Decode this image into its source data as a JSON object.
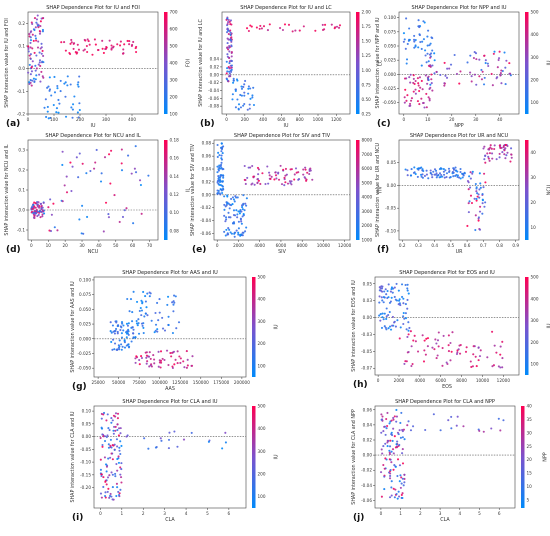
{
  "chart_data": [
    {
      "type": "scatter",
      "panel": "(a)",
      "title": "SHAP Dependence Plot for IU and FOI",
      "xlabel": "IU",
      "ylabel": "SHAP interaction value for IU and FOI",
      "colorbar_label": "FOI",
      "xlim": [
        0,
        500
      ],
      "ylim": [
        -0.2,
        0.25
      ],
      "xticks": [
        0,
        100,
        200,
        300,
        400
      ],
      "yticks": [
        -0.2,
        -0.1,
        0.0,
        0.1,
        0.2
      ],
      "cbar_range": [
        100,
        700
      ],
      "cbar_ticks": [
        100,
        200,
        300,
        400,
        500,
        600,
        700
      ],
      "clusters": [
        {
          "x": [
            0,
            60
          ],
          "y": [
            -0.08,
            0.24
          ],
          "c": [
            100,
            700
          ],
          "n": 90
        },
        {
          "x": [
            60,
            200
          ],
          "y": [
            -0.22,
            -0.02
          ],
          "c": [
            100,
            250
          ],
          "n": 45
        },
        {
          "x": [
            120,
            420
          ],
          "y": [
            0.06,
            0.13
          ],
          "c": [
            550,
            700
          ],
          "n": 60
        }
      ]
    },
    {
      "type": "scatter",
      "panel": "(b)",
      "title": "SHAP Dependence Plot for IU and LC",
      "xlabel": "IU",
      "ylabel": "SHAP interaction value for IU and LC",
      "colorbar_label": "LC",
      "xlim": [
        -50,
        1350
      ],
      "ylim": [
        -0.1,
        0.16
      ],
      "xticks": [
        0,
        200,
        400,
        600,
        800,
        1000,
        1200
      ],
      "yticks": [
        -0.08,
        -0.06,
        -0.04,
        -0.02,
        0.0,
        0.02,
        0.04
      ],
      "cbar_range": [
        0.25,
        2.0
      ],
      "cbar_ticks": [
        0.25,
        0.5,
        0.75,
        1.0,
        1.25,
        1.5,
        1.75,
        2.0
      ],
      "clusters": [
        {
          "x": [
            0,
            60
          ],
          "y": [
            -0.02,
            0.15
          ],
          "c": [
            0.25,
            2.0
          ],
          "n": 80
        },
        {
          "x": [
            60,
            300
          ],
          "y": [
            -0.09,
            -0.01
          ],
          "c": [
            0.25,
            0.8
          ],
          "n": 40
        },
        {
          "x": [
            200,
            1250
          ],
          "y": [
            0.11,
            0.13
          ],
          "c": [
            1.5,
            2.0
          ],
          "n": 30
        }
      ]
    },
    {
      "type": "scatter",
      "panel": "(c)",
      "title": "SHAP Dependence Plot for NPP and IU",
      "xlabel": "NPP",
      "ylabel": "SHAP interaction value for NPP and IU",
      "colorbar_label": "IU",
      "xlim": [
        -2,
        48
      ],
      "ylim": [
        -0.07,
        0.11
      ],
      "xticks": [
        0,
        10,
        20,
        30,
        40
      ],
      "yticks": [
        -0.05,
        -0.025,
        0.0,
        0.025,
        0.05,
        0.075,
        0.1
      ],
      "cbar_range": [
        50,
        500
      ],
      "cbar_ticks": [
        100,
        200,
        300,
        400,
        500
      ],
      "clusters": [
        {
          "x": [
            0,
            12
          ],
          "y": [
            0.01,
            0.1
          ],
          "c": [
            50,
            200
          ],
          "n": 50
        },
        {
          "x": [
            0,
            12
          ],
          "y": [
            -0.06,
            0.0
          ],
          "c": [
            300,
            500
          ],
          "n": 50
        },
        {
          "x": [
            10,
            45
          ],
          "y": [
            -0.02,
            0.04
          ],
          "c": [
            50,
            500
          ],
          "n": 80
        }
      ]
    },
    {
      "type": "scatter",
      "panel": "(d)",
      "title": "SHAP Dependence Plot for NCU and IL",
      "xlabel": "NCU",
      "ylabel": "SHAP interaction value for NCU and IL",
      "colorbar_label": "IL",
      "xlim": [
        -2,
        75
      ],
      "ylim": [
        -0.15,
        0.35
      ],
      "xticks": [
        0,
        10,
        20,
        30,
        40,
        50,
        60,
        70
      ],
      "yticks": [
        -0.1,
        0.0,
        0.1,
        0.2,
        0.3
      ],
      "cbar_range": [
        0.07,
        0.18
      ],
      "cbar_ticks": [
        0.08,
        0.1,
        0.12,
        0.14,
        0.16,
        0.18
      ],
      "clusters": [
        {
          "x": [
            0,
            8
          ],
          "y": [
            -0.04,
            0.04
          ],
          "c": [
            0.07,
            0.18
          ],
          "n": 70
        },
        {
          "x": [
            8,
            70
          ],
          "y": [
            -0.12,
            0.32
          ],
          "c": [
            0.07,
            0.18
          ],
          "n": 60
        }
      ]
    },
    {
      "type": "scatter",
      "panel": "(e)",
      "title": "SHAP Dependence Plot for SIV and TIV",
      "xlabel": "SIV",
      "ylabel": "SHAP interaction value for SIV and TIV",
      "colorbar_label": "TIV",
      "xlim": [
        -300,
        12500
      ],
      "ylim": [
        -0.07,
        0.085
      ],
      "xticks": [
        0,
        2000,
        4000,
        6000,
        8000,
        10000,
        12000
      ],
      "yticks": [
        -0.06,
        -0.04,
        -0.02,
        0.0,
        0.02,
        0.04,
        0.06,
        0.08
      ],
      "cbar_range": [
        1000,
        8000
      ],
      "cbar_ticks": [
        1000,
        2000,
        3000,
        4000,
        5000,
        6000,
        7000,
        8000
      ],
      "clusters": [
        {
          "x": [
            0,
            600
          ],
          "y": [
            0.0,
            0.08
          ],
          "c": [
            1000,
            3000
          ],
          "n": 70
        },
        {
          "x": [
            600,
            2800
          ],
          "y": [
            -0.065,
            0.0
          ],
          "c": [
            1000,
            3500
          ],
          "n": 90
        },
        {
          "x": [
            2500,
            9000
          ],
          "y": [
            0.015,
            0.045
          ],
          "c": [
            4000,
            8000
          ],
          "n": 80
        }
      ]
    },
    {
      "type": "scatter",
      "panel": "(f)",
      "title": "SHAP Dependence Plot for UR and NCU",
      "xlabel": "UR",
      "ylabel": "SHAP interaction value for UR and NCU",
      "colorbar_label": "NCU",
      "xlim": [
        0.18,
        0.92
      ],
      "ylim": [
        -0.12,
        0.1
      ],
      "xticks": [
        0.2,
        0.3,
        0.4,
        0.5,
        0.6,
        0.7,
        0.8,
        0.9
      ],
      "yticks": [
        -0.1,
        -0.05,
        0.0,
        0.05
      ],
      "cbar_range": [
        5,
        45
      ],
      "cbar_ticks": [
        10,
        20,
        30,
        40
      ],
      "clusters": [
        {
          "x": [
            0.22,
            0.6
          ],
          "y": [
            0.015,
            0.04
          ],
          "c": [
            5,
            20
          ],
          "n": 90
        },
        {
          "x": [
            0.6,
            0.72
          ],
          "y": [
            -0.1,
            0.03
          ],
          "c": [
            5,
            45
          ],
          "n": 50
        },
        {
          "x": [
            0.7,
            0.88
          ],
          "y": [
            0.05,
            0.09
          ],
          "c": [
            20,
            45
          ],
          "n": 50
        }
      ]
    },
    {
      "type": "scatter",
      "panel": "(g)",
      "title": "SHAP Dependence Plot for AAS and IU",
      "xlabel": "AAS",
      "ylabel": "SHAP interaction value for AAS and IU",
      "colorbar_label": "IU",
      "xlim": [
        20000,
        205000
      ],
      "ylim": [
        -0.065,
        0.105
      ],
      "xticks": [
        25000,
        50000,
        75000,
        100000,
        125000,
        150000,
        175000,
        200000
      ],
      "yticks": [
        -0.05,
        -0.025,
        0.0,
        0.025,
        0.05,
        0.075,
        0.1
      ],
      "cbar_range": [
        50,
        500
      ],
      "cbar_ticks": [
        100,
        200,
        300,
        400,
        500
      ],
      "clusters": [
        {
          "x": [
            40000,
            70000
          ],
          "y": [
            -0.02,
            0.03
          ],
          "c": [
            50,
            200
          ],
          "n": 70
        },
        {
          "x": [
            60000,
            125000
          ],
          "y": [
            0.0,
            0.08
          ],
          "c": [
            50,
            200
          ],
          "n": 70
        },
        {
          "x": [
            70000,
            140000
          ],
          "y": [
            -0.05,
            -0.02
          ],
          "c": [
            300,
            500
          ],
          "n": 60
        }
      ]
    },
    {
      "type": "scatter",
      "panel": "(h)",
      "title": "SHAP Dependence Plot for EOS and IU",
      "xlabel": "EOS",
      "ylabel": "SHAP interaction value for EOS and IU",
      "colorbar_label": "IU",
      "xlim": [
        -300,
        13500
      ],
      "ylim": [
        -0.085,
        0.06
      ],
      "xticks": [
        0,
        2000,
        4000,
        6000,
        8000,
        10000,
        12000
      ],
      "yticks": [
        -0.075,
        -0.05,
        -0.025,
        0.0,
        0.025,
        0.05
      ],
      "cbar_range": [
        50,
        500
      ],
      "cbar_ticks": [
        100,
        200,
        300,
        400,
        500
      ],
      "clusters": [
        {
          "x": [
            0,
            3000
          ],
          "y": [
            -0.02,
            0.05
          ],
          "c": [
            50,
            250
          ],
          "n": 90
        },
        {
          "x": [
            2000,
            12000
          ],
          "y": [
            -0.075,
            -0.02
          ],
          "c": [
            300,
            500
          ],
          "n": 80
        }
      ]
    },
    {
      "type": "scatter",
      "panel": "(i)",
      "title": "SHAP Dependence Plot for CLA and IU",
      "xlabel": "CLA",
      "ylabel": "SHAP interaction value for CLA and IU",
      "colorbar_label": "IU",
      "xlim": [
        -0.3,
        6.8
      ],
      "ylim": [
        -0.28,
        0.12
      ],
      "xticks": [
        0,
        1,
        2,
        3,
        4,
        5,
        6
      ],
      "yticks": [
        -0.2,
        -0.15,
        -0.1,
        -0.05,
        0.0,
        0.05,
        0.1
      ],
      "cbar_range": [
        50,
        500
      ],
      "cbar_ticks": [
        100,
        200,
        300,
        400,
        500
      ],
      "clusters": [
        {
          "x": [
            0,
            1.0
          ],
          "y": [
            -0.25,
            0.1
          ],
          "c": [
            50,
            500
          ],
          "n": 120
        },
        {
          "x": [
            1.0,
            6.5
          ],
          "y": [
            -0.05,
            0.02
          ],
          "c": [
            50,
            300
          ],
          "n": 20
        }
      ]
    },
    {
      "type": "scatter",
      "panel": "(j)",
      "title": "SHAP Dependence Plot for CLA and NPP",
      "xlabel": "CLA",
      "ylabel": "SHAP interaction value for CLA and NPP",
      "colorbar_label": "NPP",
      "xlim": [
        -0.3,
        6.8
      ],
      "ylim": [
        -0.07,
        0.065
      ],
      "xticks": [
        0,
        1,
        2,
        3,
        4,
        5,
        6
      ],
      "yticks": [
        -0.06,
        -0.04,
        -0.02,
        0.0,
        0.02,
        0.04,
        0.06
      ],
      "cbar_range": [
        2,
        40
      ],
      "cbar_ticks": [
        5,
        10,
        15,
        20,
        25,
        30,
        35,
        40
      ],
      "clusters": [
        {
          "x": [
            0,
            1.2
          ],
          "y": [
            -0.06,
            0.06
          ],
          "c": [
            2,
            40
          ],
          "n": 120
        },
        {
          "x": [
            1.2,
            6.5
          ],
          "y": [
            0.03,
            0.055
          ],
          "c": [
            10,
            30
          ],
          "n": 20
        }
      ]
    }
  ]
}
